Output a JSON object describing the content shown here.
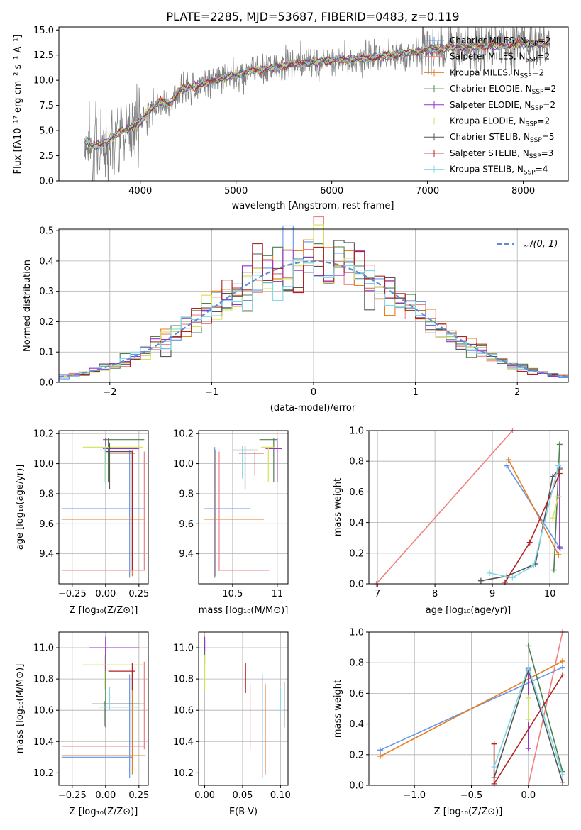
{
  "figure": {
    "title": "PLATE=2285, MJD=53687, FIBERID=0483, z=0.119"
  },
  "chart_data": [
    {
      "id": "spectrum",
      "type": "line",
      "xlabel": "wavelength [Angstrom, rest frame]",
      "ylabel": "Flux [fλ10⁻¹⁷ erg cm⁻² s⁻¹ A⁻¹]",
      "xlim": [
        3150,
        8470
      ],
      "ylim": [
        0,
        15.3
      ],
      "xticks": [
        4000,
        5000,
        6000,
        7000,
        8000
      ],
      "yticks": [
        0.0,
        2.5,
        5.0,
        7.5,
        10.0,
        12.5,
        15.0
      ],
      "grid": false,
      "legend_position": "right",
      "continuum": {
        "wavelength": [
          3400,
          3500,
          3600,
          3700,
          3800,
          3900,
          4000,
          4100,
          4200,
          4300,
          4400,
          4500,
          4600,
          4700,
          4800,
          4900,
          5000,
          5200,
          5400,
          5600,
          5800,
          6000,
          6200,
          6400,
          6600,
          6800,
          7000,
          7200,
          7400,
          7600,
          7800,
          8000,
          8200
        ],
        "flux": [
          4.2,
          3.4,
          3.6,
          4.3,
          4.9,
          5.3,
          5.8,
          7.1,
          7.9,
          7.6,
          8.9,
          9.3,
          9.5,
          9.7,
          10.1,
          10.3,
          10.5,
          11.0,
          11.3,
          11.6,
          11.8,
          12.0,
          12.1,
          12.2,
          12.5,
          12.7,
          13.0,
          13.2,
          13.3,
          13.4,
          13.5,
          13.6,
          13.6
        ]
      },
      "series": [
        {
          "name": "Chabrier MILES, N_SSP=2",
          "color": "#6495ED"
        },
        {
          "name": "Salpeter MILES, N_SSP=2",
          "color": "#F08080"
        },
        {
          "name": "Kroupa MILES, N_SSP=2",
          "color": "#E67E22"
        },
        {
          "name": "Chabrier ELODIE, N_SSP=2",
          "color": "#4F7F4F"
        },
        {
          "name": "Salpeter ELODIE, N_SSP=2",
          "color": "#9932CC"
        },
        {
          "name": "Kroupa ELODIE, N_SSP=2",
          "color": "#D4E157"
        },
        {
          "name": "Chabrier STELIB, N_SSP=5",
          "color": "#555555"
        },
        {
          "name": "Salpeter STELIB, N_SSP=3",
          "color": "#B22222"
        },
        {
          "name": "Kroupa STELIB, N_SSP=4",
          "color": "#7FD8E6"
        }
      ]
    },
    {
      "id": "residuals",
      "type": "histogram",
      "xlabel": "(data-model)/error",
      "ylabel": "Normed distribution",
      "xlim": [
        -2.5,
        2.5
      ],
      "ylim": [
        0,
        0.505
      ],
      "xticks": [
        -2,
        -1,
        0,
        1,
        2
      ],
      "yticks": [
        0.0,
        0.1,
        0.2,
        0.3,
        0.4,
        0.5
      ],
      "grid": true,
      "legend": "𝒩(0, 1)",
      "legend_position": "top-right",
      "bin_width": 0.1,
      "reference_curve": "normal(0,1)"
    },
    {
      "id": "z_age",
      "type": "errorbar",
      "xlabel": "Z [log₁₀(Z/Z⊙)]",
      "ylabel": "age  [log₁₀(age/yr)]",
      "xlim": [
        -0.35,
        0.32
      ],
      "ylim": [
        9.2,
        10.22
      ],
      "xticks": [
        -0.25,
        0.0,
        0.25
      ],
      "xticklabels": [
        "−0.25",
        "0.00",
        "0.25"
      ],
      "yticks": [
        9.4,
        9.6,
        9.8,
        10.0,
        10.2
      ],
      "grid": true
    },
    {
      "id": "mass_age",
      "type": "errorbar",
      "xlabel": "mass [log₁₀(M/M⊙)]",
      "xlim": [
        10.12,
        11.12
      ],
      "ylim": [
        9.2,
        10.22
      ],
      "xticks": [
        10.5,
        11.0
      ],
      "yticks": [
        9.4,
        9.6,
        9.8,
        10.0,
        10.2
      ],
      "grid": true
    },
    {
      "id": "age_weight",
      "type": "line",
      "xlabel": "age  [log₁₀(age/yr)]",
      "ylabel": "mass weight",
      "xlim": [
        6.85,
        10.32
      ],
      "ylim": [
        0,
        1.0
      ],
      "xticks": [
        7,
        8,
        9,
        10
      ],
      "yticks": [
        0.0,
        0.2,
        0.4,
        0.6,
        0.8,
        1.0
      ],
      "grid": true,
      "series": [
        {
          "name": "Chabrier MILES",
          "color": "#6495ED",
          "x": [
            9.25,
            10.18
          ],
          "y": [
            0.77,
            0.23
          ]
        },
        {
          "name": "Salpeter MILES",
          "color": "#F08080",
          "x": [
            6.98,
            9.35
          ],
          "y": [
            0.0,
            1.0
          ]
        },
        {
          "name": "Kroupa MILES",
          "color": "#E67E22",
          "x": [
            9.28,
            10.15
          ],
          "y": [
            0.81,
            0.19
          ]
        },
        {
          "name": "Chabrier ELODIE",
          "color": "#4F7F4F",
          "x": [
            10.07,
            10.17
          ],
          "y": [
            0.09,
            0.91
          ]
        },
        {
          "name": "Salpeter ELODIE",
          "color": "#9932CC",
          "x": [
            10.17,
            10.17
          ],
          "y": [
            0.76,
            0.24
          ]
        },
        {
          "name": "Kroupa ELODIE",
          "color": "#D4E157",
          "x": [
            10.05,
            10.15
          ],
          "y": [
            0.43,
            0.57
          ]
        },
        {
          "name": "Chabrier STELIB",
          "color": "#555555",
          "x": [
            8.8,
            9.25,
            9.75,
            10.05,
            10.17
          ],
          "y": [
            0.02,
            0.05,
            0.13,
            0.7,
            0.75
          ]
        },
        {
          "name": "Salpeter STELIB",
          "color": "#B22222",
          "x": [
            9.22,
            9.65,
            10.17
          ],
          "y": [
            0.01,
            0.27,
            0.72
          ]
        },
        {
          "name": "Kroupa STELIB",
          "color": "#7FD8E6",
          "x": [
            8.95,
            9.35,
            9.72,
            10.15
          ],
          "y": [
            0.07,
            0.04,
            0.12,
            0.77
          ]
        }
      ]
    },
    {
      "id": "z_mass",
      "type": "errorbar",
      "xlabel": "Z [log₁₀(Z/Z⊙)]",
      "ylabel": "mass [log₁₀(M/M⊙)]",
      "xlim": [
        -0.35,
        0.32
      ],
      "ylim": [
        10.12,
        11.1
      ],
      "xticks": [
        -0.25,
        0.0,
        0.25
      ],
      "xticklabels": [
        "−0.25",
        "0.00",
        "0.25"
      ],
      "yticks": [
        10.2,
        10.4,
        10.6,
        10.8,
        11.0
      ],
      "grid": true
    },
    {
      "id": "ebv_mass",
      "type": "errorbar",
      "xlabel": "E(B-V)",
      "xlim": [
        -0.008,
        0.11
      ],
      "ylim": [
        10.12,
        11.1
      ],
      "xticks": [
        0.0,
        0.05,
        0.1
      ],
      "xticklabels": [
        "0.00",
        "0.05",
        "0.10"
      ],
      "yticks": [
        10.2,
        10.4,
        10.6,
        10.8,
        11.0
      ],
      "grid": true
    },
    {
      "id": "z_weight",
      "type": "line",
      "xlabel": "Z [log₁₀(Z/Z⊙)]",
      "ylabel": "mass weight",
      "xlim": [
        -1.4,
        0.35
      ],
      "ylim": [
        0,
        1.0
      ],
      "xticks": [
        -1.0,
        -0.5,
        0.0
      ],
      "xticklabels": [
        "−1.0",
        "−0.5",
        "0.0"
      ],
      "yticks": [
        0.0,
        0.2,
        0.4,
        0.6,
        0.8,
        1.0
      ],
      "grid": true,
      "series": [
        {
          "name": "Chabrier MILES",
          "color": "#6495ED",
          "x": [
            -1.3,
            0.3
          ],
          "y": [
            0.23,
            0.77
          ]
        },
        {
          "name": "Salpeter MILES",
          "color": "#F08080",
          "x": [
            0.0,
            0.3
          ],
          "y": [
            0.0,
            1.0
          ]
        },
        {
          "name": "Kroupa MILES",
          "color": "#E67E22",
          "x": [
            -1.3,
            0.3
          ],
          "y": [
            0.19,
            0.81
          ]
        },
        {
          "name": "Chabrier ELODIE",
          "color": "#4F7F4F",
          "x": [
            0.0,
            0.3
          ],
          "y": [
            0.91,
            0.09
          ]
        },
        {
          "name": "Salpeter ELODIE",
          "color": "#9932CC",
          "x": [
            0.0,
            0.0
          ],
          "y": [
            0.76,
            0.24
          ]
        },
        {
          "name": "Kroupa ELODIE",
          "color": "#D4E157",
          "x": [
            0.0,
            0.0
          ],
          "y": [
            0.43,
            0.57
          ]
        },
        {
          "name": "Chabrier STELIB",
          "color": "#555555",
          "x": [
            -0.3,
            0.0,
            0.3
          ],
          "y": [
            0.05,
            0.75,
            0.02
          ]
        },
        {
          "name": "Salpeter STELIB",
          "color": "#B22222",
          "x": [
            -0.3,
            -0.3,
            0.3
          ],
          "y": [
            0.27,
            0.01,
            0.72
          ]
        },
        {
          "name": "Kroupa STELIB",
          "color": "#7FD8E6",
          "x": [
            -0.3,
            0.0,
            0.3
          ],
          "y": [
            0.12,
            0.77,
            0.07
          ]
        }
      ]
    }
  ]
}
